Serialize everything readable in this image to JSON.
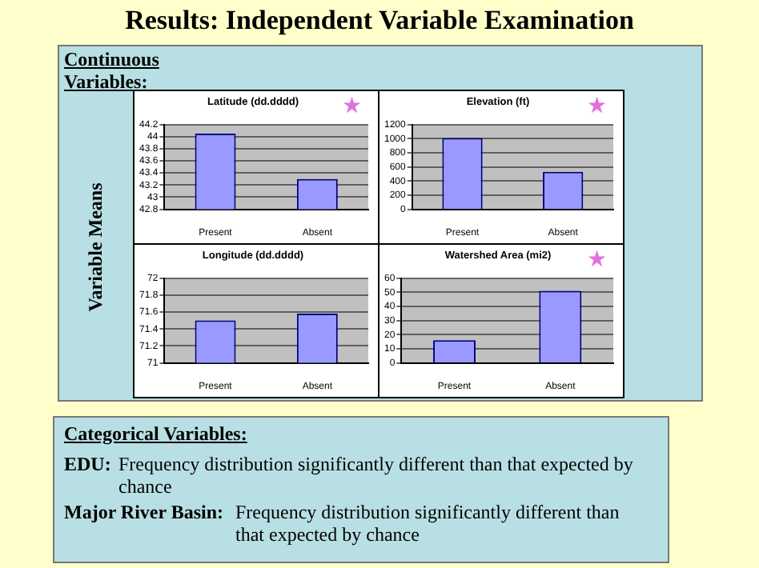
{
  "chart_data": [
    {
      "type": "other",
      "title": "Results: Independent Variable Examination",
      "annotations": [
        "Continuous Variables:",
        "Variable Means"
      ]
    },
    {
      "type": "bar",
      "title": "Latitude (dd.dddd)",
      "categories": [
        "Present",
        "Absent"
      ],
      "values": [
        44.05,
        43.3
      ],
      "color": "#9999ff",
      "ylim": [
        42.8,
        44.2
      ],
      "yticks": [
        42.8,
        43,
        43.2,
        43.4,
        43.6,
        43.8,
        44,
        44.2
      ],
      "grid": "y",
      "annotations": [
        "★"
      ]
    },
    {
      "type": "bar",
      "title": "Elevation (ft)",
      "categories": [
        "Present",
        "Absent"
      ],
      "values": [
        1010,
        530
      ],
      "color": "#9999ff",
      "ylim": [
        0,
        1200
      ],
      "yticks": [
        0,
        200,
        400,
        600,
        800,
        1000,
        1200
      ],
      "grid": "y",
      "annotations": [
        "★"
      ]
    },
    {
      "type": "bar",
      "title": "Longitude (dd.dddd)",
      "categories": [
        "Present",
        "Absent"
      ],
      "values": [
        71.5,
        71.58
      ],
      "color": "#9999ff",
      "ylim": [
        71,
        72
      ],
      "yticks": [
        71,
        71.2,
        71.4,
        71.6,
        71.8,
        72
      ],
      "grid": "y"
    },
    {
      "type": "bar",
      "title": "Watershed Area (mi2)",
      "categories": [
        "Present",
        "Absent"
      ],
      "values": [
        16,
        51
      ],
      "color": "#9999ff",
      "ylim": [
        0,
        60
      ],
      "yticks": [
        0,
        10,
        20,
        30,
        40,
        50,
        60
      ],
      "grid": "y",
      "annotations": [
        "★"
      ]
    },
    {
      "type": "other",
      "title": "Categorical Variables:",
      "annotations": [
        "EDU:",
        "Frequency distribution significantly different than that expected by chance",
        "Major River Basin:",
        "Frequency distribution significantly different than that expected by chance"
      ]
    }
  ]
}
